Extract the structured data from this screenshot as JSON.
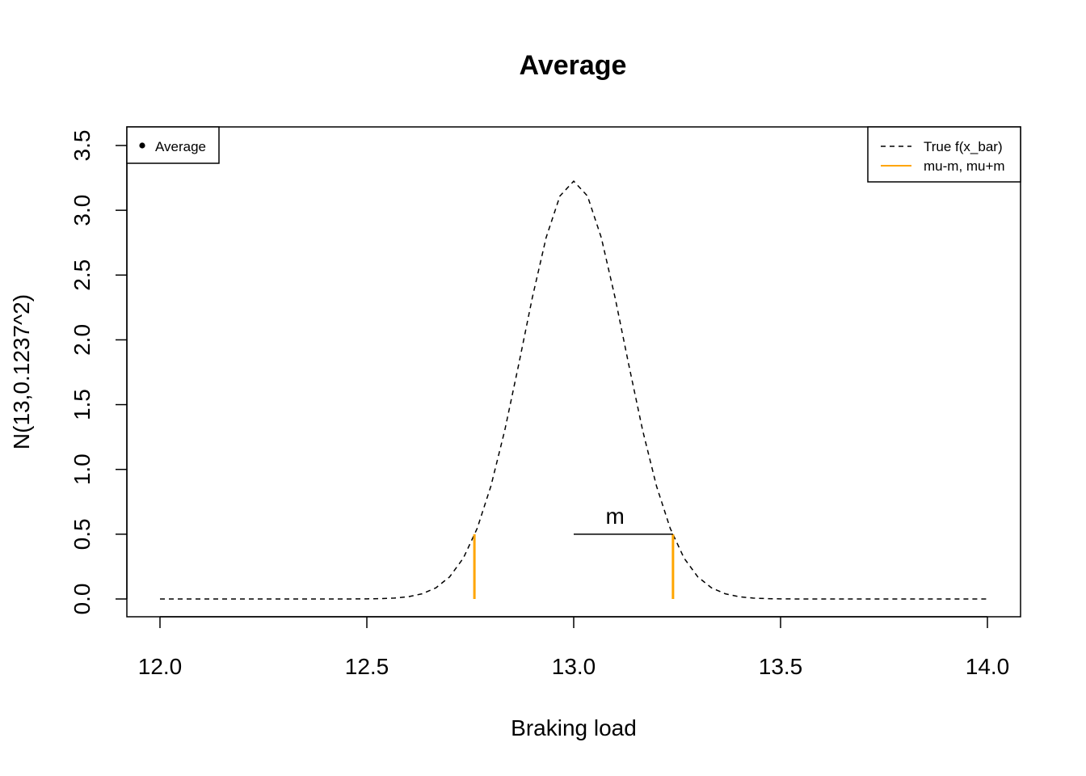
{
  "chart_data": {
    "type": "line",
    "title": "Average",
    "xlabel": "Braking load",
    "ylabel": "N(13,0.1237^2)",
    "xlim": [
      12.0,
      14.0
    ],
    "ylim": [
      0.0,
      3.5
    ],
    "x_ticks": [
      "12.0",
      "12.5",
      "13.0",
      "13.5",
      "14.0"
    ],
    "y_ticks": [
      "0.0",
      "0.5",
      "1.0",
      "1.5",
      "2.0",
      "2.5",
      "3.0",
      "3.5"
    ],
    "grid": false,
    "series": [
      {
        "name": "True f(x_bar)",
        "style": "dashed",
        "color": "#000000",
        "distribution": {
          "mean": 13.0,
          "sd": 0.1237
        },
        "x_range": [
          12.0,
          14.0
        ]
      },
      {
        "name": "mu-m, mu+m",
        "style": "solid",
        "color": "#FFA500",
        "segments": [
          {
            "x": 12.76,
            "y0": 0.0,
            "y1": 0.5
          },
          {
            "x": 13.24,
            "y0": 0.0,
            "y1": 0.5
          }
        ]
      }
    ],
    "annotations": [
      {
        "type": "segment",
        "x0": 13.0,
        "x1": 13.24,
        "y": 0.5,
        "color": "#000000"
      },
      {
        "type": "text",
        "text": "m",
        "x": 13.1,
        "y": 0.58
      }
    ],
    "legends": [
      {
        "position": "top-left",
        "entries": [
          {
            "label": "Average",
            "symbol": "point"
          }
        ]
      },
      {
        "position": "top-right",
        "entries": [
          {
            "label": "True f(x_bar)",
            "symbol": "dashed-line",
            "color": "#000000"
          },
          {
            "label": "mu-m, mu+m",
            "symbol": "solid-line",
            "color": "#FFA500"
          }
        ]
      }
    ]
  }
}
